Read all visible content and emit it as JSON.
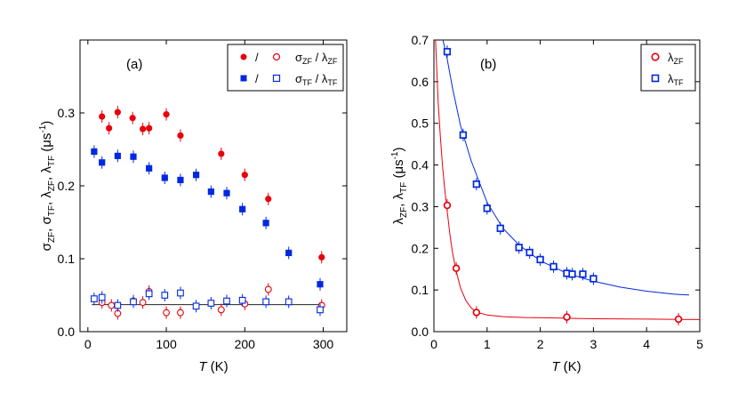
{
  "colors": {
    "red": "#e8000b",
    "blue": "#0028e0",
    "black": "#222222"
  },
  "chart_data": [
    {
      "type": "scatter",
      "panel_label": "(a)",
      "xlabel": "T (K)",
      "ylabel": "σZF, σTF, λZF, λTF (μs-1)",
      "xlim": [
        -10,
        330
      ],
      "ylim": [
        0,
        0.4
      ],
      "xticks": [
        0,
        100,
        200,
        300
      ],
      "yticks": [
        0.0,
        0.1,
        0.2,
        0.3
      ],
      "legend_position": "top-right",
      "legend": [
        {
          "slash": "/",
          "label": "σZF / λZF",
          "color": "red",
          "filled_marker": "circle",
          "open_marker": "circle"
        },
        {
          "slash": "/",
          "label": "σTF / λTF",
          "color": "blue",
          "filled_marker": "square",
          "open_marker": "square"
        }
      ],
      "series": [
        {
          "name": "σZF",
          "marker": "circle",
          "filled": true,
          "color": "red",
          "x": [
            18,
            27,
            38,
            57,
            70,
            78,
            100,
            118,
            170,
            200,
            230,
            298
          ],
          "y": [
            0.295,
            0.279,
            0.301,
            0.293,
            0.278,
            0.279,
            0.298,
            0.269,
            0.244,
            0.215,
            0.182,
            0.102
          ]
        },
        {
          "name": "σTF",
          "marker": "square",
          "filled": true,
          "color": "blue",
          "x": [
            8,
            18,
            38,
            58,
            78,
            98,
            118,
            138,
            157,
            177,
            197,
            227,
            256,
            296
          ],
          "y": [
            0.247,
            0.232,
            0.241,
            0.24,
            0.224,
            0.211,
            0.208,
            0.215,
            0.192,
            0.19,
            0.168,
            0.149,
            0.108,
            0.065
          ]
        },
        {
          "name": "λZF",
          "marker": "circle",
          "filled": false,
          "color": "red",
          "x": [
            18,
            30,
            38,
            58,
            70,
            78,
            100,
            118,
            170,
            200,
            230,
            298
          ],
          "y": [
            0.04,
            0.036,
            0.025,
            0.042,
            0.04,
            0.055,
            0.026,
            0.026,
            0.03,
            0.038,
            0.058,
            0.036
          ]
        },
        {
          "name": "λTF",
          "marker": "square",
          "filled": false,
          "color": "blue",
          "x": [
            8,
            18,
            38,
            58,
            78,
            98,
            118,
            138,
            157,
            177,
            197,
            227,
            256,
            296
          ],
          "y": [
            0.045,
            0.047,
            0.036,
            0.041,
            0.052,
            0.05,
            0.053,
            0.035,
            0.039,
            0.042,
            0.043,
            0.041,
            0.041,
            0.03
          ]
        }
      ],
      "fit_line": {
        "color": "black",
        "x": [
          5,
          300
        ],
        "y": [
          0.037,
          0.037
        ]
      }
    },
    {
      "type": "scatter",
      "panel_label": "(b)",
      "xlabel": "T (K)",
      "ylabel": "λZF, λTF (μs-1)",
      "xlim": [
        0,
        5
      ],
      "ylim": [
        0,
        0.7
      ],
      "xticks": [
        0,
        1,
        2,
        3,
        4,
        5
      ],
      "yticks": [
        0.0,
        0.1,
        0.2,
        0.3,
        0.4,
        0.5,
        0.6,
        0.7
      ],
      "legend_position": "top-right",
      "legend": [
        {
          "label": "λZF",
          "color": "red",
          "marker": "circle"
        },
        {
          "label": "λTF",
          "color": "blue",
          "marker": "square"
        }
      ],
      "series": [
        {
          "name": "λZF",
          "marker": "circle",
          "filled": false,
          "color": "red",
          "x": [
            0.25,
            0.42,
            0.8,
            2.5,
            4.6
          ],
          "y": [
            0.303,
            0.152,
            0.046,
            0.035,
            0.03
          ]
        },
        {
          "name": "λTF",
          "marker": "square",
          "filled": false,
          "color": "blue",
          "x": [
            0.25,
            0.55,
            0.8,
            1.0,
            1.25,
            1.6,
            1.8,
            2.0,
            2.25,
            2.5,
            2.6,
            2.8,
            3.0
          ],
          "y": [
            0.672,
            0.472,
            0.354,
            0.296,
            0.248,
            0.202,
            0.19,
            0.173,
            0.156,
            0.14,
            0.138,
            0.138,
            0.127
          ]
        }
      ],
      "fits": [
        {
          "color": "red",
          "x": [
            0.03,
            0.08,
            0.12,
            0.16,
            0.2,
            0.25,
            0.3,
            0.35,
            0.42,
            0.5,
            0.6,
            0.7,
            0.8,
            1.0,
            1.3,
            1.7,
            2.2,
            3.0,
            4.0,
            5.0
          ],
          "y": [
            0.7,
            0.55,
            0.47,
            0.4,
            0.345,
            0.29,
            0.235,
            0.19,
            0.145,
            0.105,
            0.075,
            0.057,
            0.047,
            0.04,
            0.036,
            0.034,
            0.033,
            0.031,
            0.03,
            0.029
          ]
        },
        {
          "color": "blue",
          "x": [
            0.17,
            0.25,
            0.35,
            0.5,
            0.7,
            1.0,
            1.3,
            1.6,
            2.0,
            2.5,
            3.0,
            3.5,
            4.0,
            4.5,
            4.8
          ],
          "y": [
            0.7,
            0.655,
            0.585,
            0.495,
            0.41,
            0.31,
            0.248,
            0.208,
            0.17,
            0.14,
            0.121,
            0.107,
            0.097,
            0.09,
            0.088
          ]
        }
      ]
    }
  ]
}
